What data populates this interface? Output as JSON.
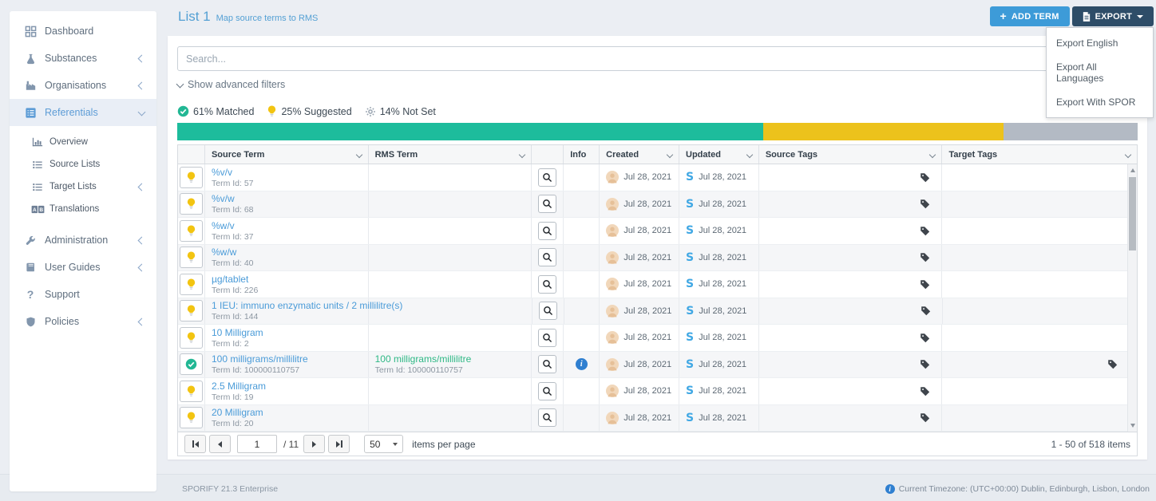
{
  "header": {
    "title": "List 1",
    "subtitle": "Map source terms to RMS",
    "add_term_label": "ADD TERM",
    "export_label": "EXPORT",
    "export_menu": [
      "Export English",
      "Export All Languages",
      "Export With SPOR"
    ]
  },
  "sidebar": {
    "items": [
      {
        "label": "Dashboard",
        "icon": "dashboard"
      },
      {
        "label": "Substances",
        "icon": "flask",
        "chevron": "left"
      },
      {
        "label": "Organisations",
        "icon": "factory",
        "chevron": "left"
      },
      {
        "label": "Referentials",
        "icon": "referentials",
        "chevron": "down",
        "active": true
      },
      {
        "label": "Overview",
        "icon": "bar-chart",
        "sub": true
      },
      {
        "label": "Source Lists",
        "icon": "list",
        "sub": true
      },
      {
        "label": "Target Lists",
        "icon": "list",
        "chevron": "left",
        "sub": true
      },
      {
        "label": "Translations",
        "icon": "translate",
        "sub": true
      },
      {
        "label": "Administration",
        "icon": "wrench",
        "chevron": "left"
      },
      {
        "label": "User Guides",
        "icon": "book",
        "chevron": "left"
      },
      {
        "label": "Support",
        "icon": "question"
      },
      {
        "label": "Policies",
        "icon": "shield",
        "chevron": "left"
      }
    ]
  },
  "search": {
    "placeholder": "Search...",
    "advanced_filters_label": "Show advanced filters"
  },
  "status_summary": {
    "legend": [
      {
        "label": "61% Matched",
        "icon": "check-circle",
        "pct": 61,
        "color": "#1dbc9c"
      },
      {
        "label": "25% Suggested",
        "icon": "bulb",
        "pct": 25,
        "color": "#ecc21c"
      },
      {
        "label": "14% Not Set",
        "icon": "gear",
        "pct": 14,
        "color": "#b3bac4"
      }
    ]
  },
  "table": {
    "columns": [
      {
        "label": "",
        "key": "status"
      },
      {
        "label": "Source Term",
        "key": "source-term",
        "sortable": true
      },
      {
        "label": "RMS Term",
        "key": "rms-term",
        "sortable": true
      },
      {
        "label": "",
        "key": "search"
      },
      {
        "label": "Info",
        "key": "info"
      },
      {
        "label": "Created",
        "key": "created",
        "sortable": true
      },
      {
        "label": "Updated",
        "key": "updated",
        "sortable": true
      },
      {
        "label": "Source Tags",
        "key": "source-tags",
        "sortable": true
      },
      {
        "label": "Target Tags",
        "key": "target-tags",
        "sortable": true
      }
    ],
    "rows": [
      {
        "status": "suggested",
        "source_term": "%v/v",
        "source_id": "Term Id: 57",
        "rms_term": "",
        "rms_id": "",
        "info": false,
        "created": "Jul 28, 2021",
        "updated": "Jul 28, 2021",
        "source_tag": true,
        "target_tag": false
      },
      {
        "status": "suggested",
        "source_term": "%v/w",
        "source_id": "Term Id: 68",
        "rms_term": "",
        "rms_id": "",
        "info": false,
        "created": "Jul 28, 2021",
        "updated": "Jul 28, 2021",
        "source_tag": true,
        "target_tag": false
      },
      {
        "status": "suggested",
        "source_term": "%w/v",
        "source_id": "Term Id: 37",
        "rms_term": "",
        "rms_id": "",
        "info": false,
        "created": "Jul 28, 2021",
        "updated": "Jul 28, 2021",
        "source_tag": true,
        "target_tag": false
      },
      {
        "status": "suggested",
        "source_term": "%w/w",
        "source_id": "Term Id: 40",
        "rms_term": "",
        "rms_id": "",
        "info": false,
        "created": "Jul 28, 2021",
        "updated": "Jul 28, 2021",
        "source_tag": true,
        "target_tag": false
      },
      {
        "status": "suggested",
        "source_term": "µg/tablet",
        "source_id": "Term Id: 226",
        "rms_term": "",
        "rms_id": "",
        "info": false,
        "created": "Jul 28, 2021",
        "updated": "Jul 28, 2021",
        "source_tag": true,
        "target_tag": false
      },
      {
        "status": "suggested",
        "source_term": "1 IEU: immuno enzymatic units / 2 millilitre(s)",
        "source_id": "Term Id: 144",
        "rms_term": "",
        "rms_id": "",
        "info": false,
        "created": "Jul 28, 2021",
        "updated": "Jul 28, 2021",
        "source_tag": true,
        "target_tag": false
      },
      {
        "status": "suggested",
        "source_term": "10 Milligram",
        "source_id": "Term Id: 2",
        "rms_term": "",
        "rms_id": "",
        "info": false,
        "created": "Jul 28, 2021",
        "updated": "Jul 28, 2021",
        "source_tag": true,
        "target_tag": false
      },
      {
        "status": "matched",
        "source_term": "100 milligrams/millilitre",
        "source_id": "Term Id: 100000110757",
        "rms_term": "100 milligrams/millilitre",
        "rms_id": "Term Id: 100000110757",
        "info": true,
        "created": "Jul 28, 2021",
        "updated": "Jul 28, 2021",
        "source_tag": true,
        "target_tag": true
      },
      {
        "status": "suggested",
        "source_term": "2.5 Milligram",
        "source_id": "Term Id: 19",
        "rms_term": "",
        "rms_id": "",
        "info": false,
        "created": "Jul 28, 2021",
        "updated": "Jul 28, 2021",
        "source_tag": true,
        "target_tag": false
      },
      {
        "status": "suggested",
        "source_term": "20 Milligram",
        "source_id": "Term Id: 20",
        "rms_term": "",
        "rms_id": "",
        "info": false,
        "created": "Jul 28, 2021",
        "updated": "Jul 28, 2021",
        "source_tag": true,
        "target_tag": false
      }
    ]
  },
  "pagination": {
    "page": "1",
    "of_label": "/ 11",
    "page_size": "50",
    "per_page_label": "items per page",
    "range_label": "1 - 50 of 518 items"
  },
  "footer": {
    "left": "SPORIFY 21.3 Enterprise",
    "right": "Current Timezone: (UTC+00:00) Dublin, Edinburgh, Lisbon, London"
  },
  "colors": {
    "accent_blue": "#3d9bd8",
    "dark_blue": "#2e4d68",
    "matched_green": "#1dbc9c",
    "suggested_yellow": "#ecc21c",
    "not_set_gray": "#b3bac4",
    "link_blue": "#4a9bd8",
    "rms_green": "#2eb885"
  }
}
